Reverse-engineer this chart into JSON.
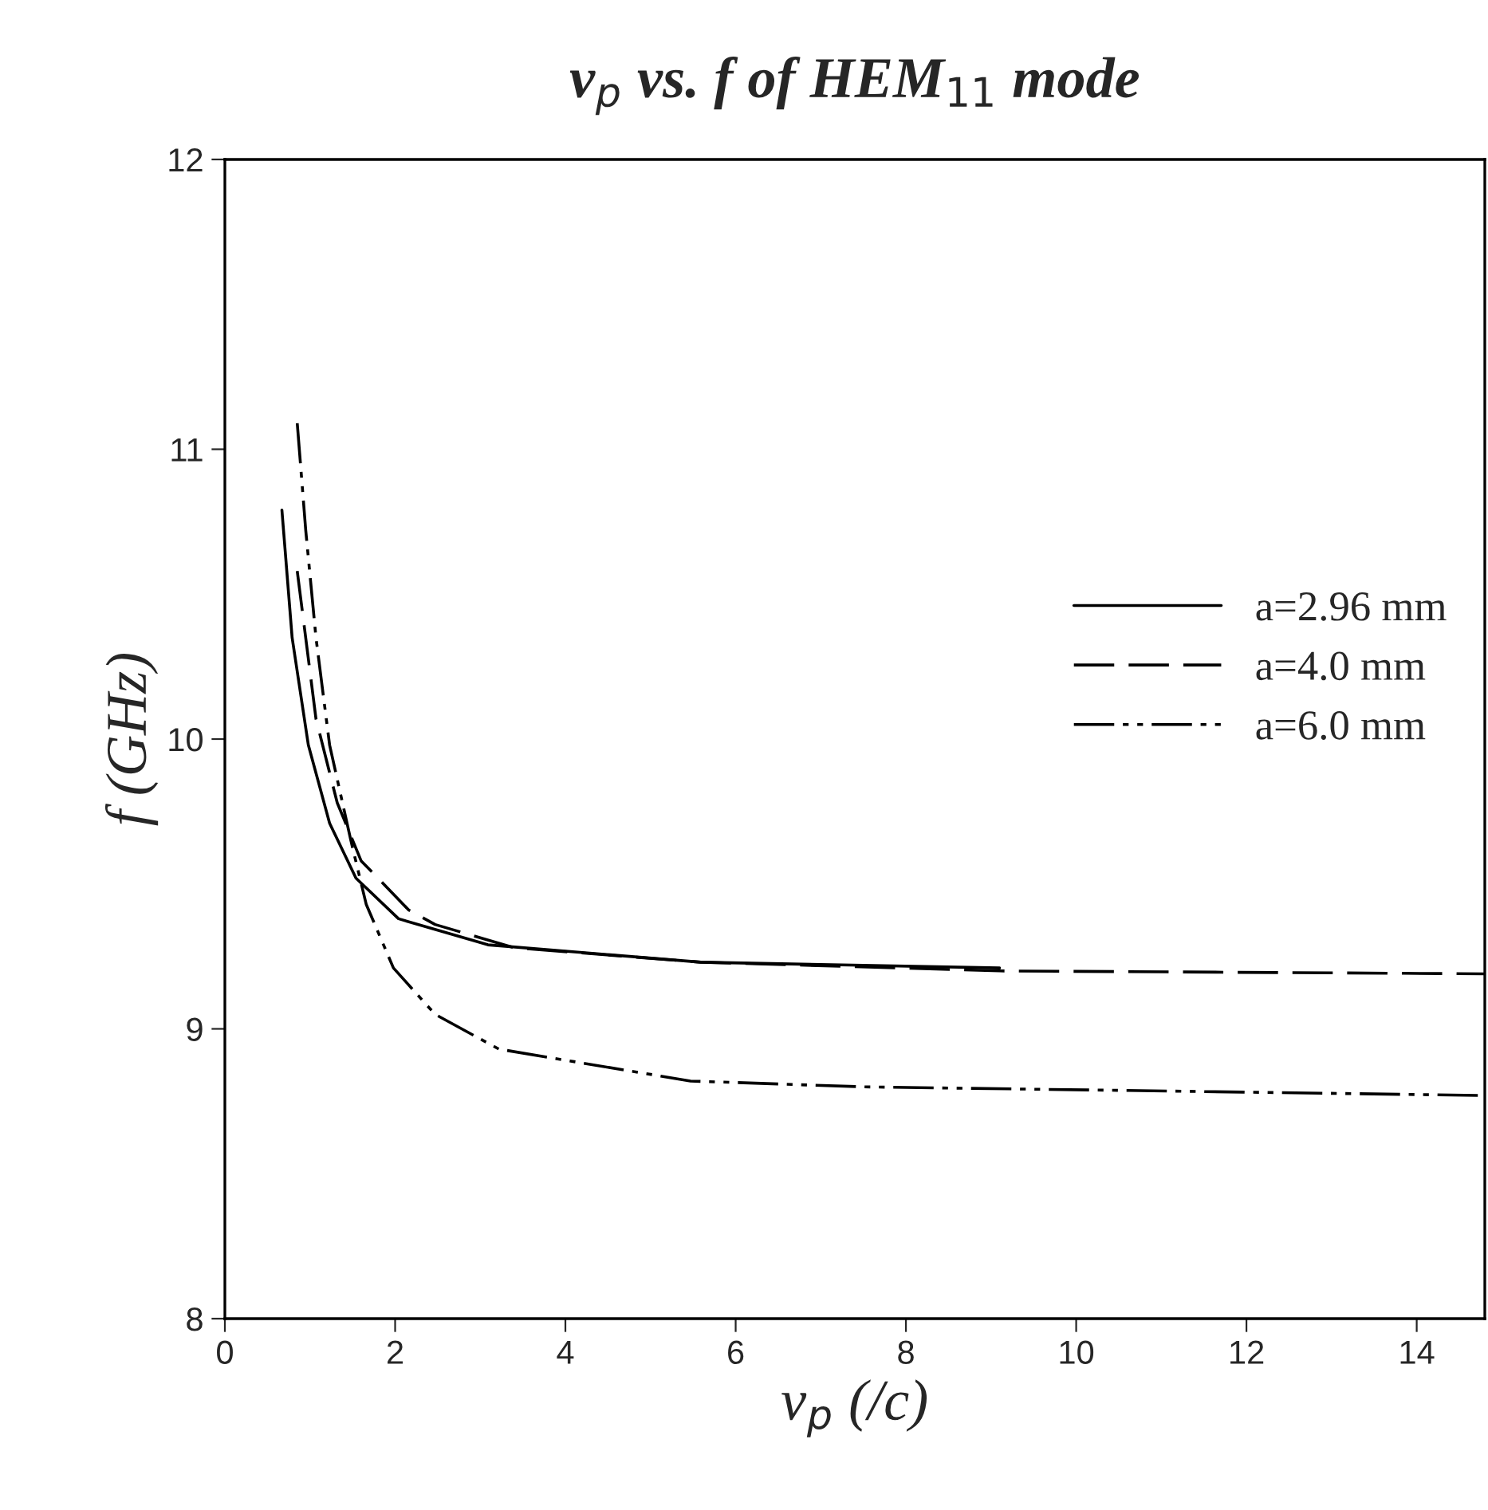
{
  "chart_data": {
    "type": "line",
    "title": "v$_{p}$ vs. f of HEM$_{11}$ mode",
    "xlabel": "v$_{p}$ (/c)",
    "ylabel": "f (GHz)",
    "xlim": [
      0,
      14.8
    ],
    "xticks": [
      0,
      2,
      4,
      6,
      8,
      10,
      12,
      14
    ],
    "ylim": [
      8,
      12
    ],
    "yticks": [
      8,
      9,
      10,
      11,
      12
    ],
    "grid": false,
    "legend": "right",
    "marker": "none",
    "series": [
      {
        "name": "a=2.96 mm",
        "color": "#000000",
        "line_style": "solid",
        "x": [
          0.67,
          0.79,
          0.98,
          1.23,
          1.54,
          2.04,
          3.09,
          5.59,
          9.1
        ],
        "values": [
          10.79,
          10.35,
          9.98,
          9.71,
          9.52,
          9.38,
          9.29,
          9.23,
          9.21
        ]
      },
      {
        "name": "a=4.0 mm",
        "color": "#000000",
        "line_style": "dashed",
        "x": [
          0.85,
          1.07,
          1.32,
          1.6,
          2.16,
          2.47,
          3.4,
          5.59,
          9.1,
          14.8
        ],
        "values": [
          10.58,
          10.07,
          9.78,
          9.58,
          9.41,
          9.36,
          9.28,
          9.23,
          9.2,
          9.19
        ]
      },
      {
        "name": "a=6.0 mm",
        "color": "#000000",
        "line_style": "dashdot",
        "x": [
          0.85,
          0.95,
          1.07,
          1.23,
          1.48,
          1.66,
          1.98,
          2.47,
          3.22,
          5.47,
          7.5,
          14.8
        ],
        "values": [
          11.09,
          10.72,
          10.35,
          9.98,
          9.65,
          9.43,
          9.21,
          9.05,
          8.93,
          8.82,
          8.8,
          8.77
        ]
      }
    ]
  }
}
